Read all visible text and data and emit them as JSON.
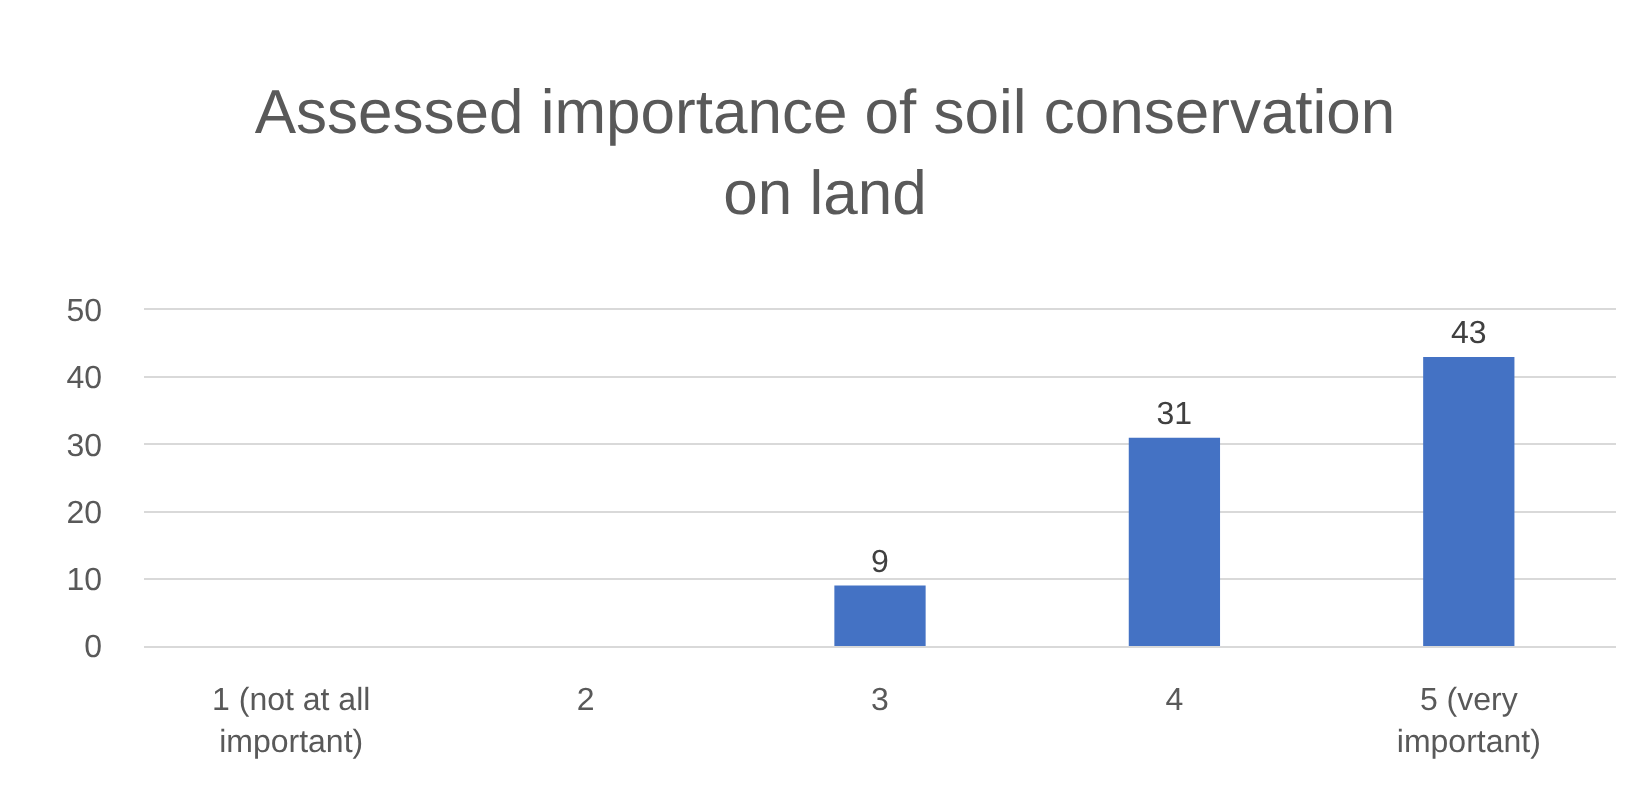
{
  "chart_data": {
    "type": "bar",
    "title": "Assessed importance of soil conservation on land",
    "categories": [
      "1 (not at all important)",
      "2",
      "3",
      "4",
      "5 (very important)"
    ],
    "values": [
      null,
      null,
      9,
      31,
      43
    ],
    "color": "#4472c4",
    "ylim": [
      0,
      50
    ],
    "yticks": [
      0,
      10,
      20,
      30,
      40,
      50
    ],
    "grid": "y",
    "legend": false,
    "data_labels": true
  }
}
